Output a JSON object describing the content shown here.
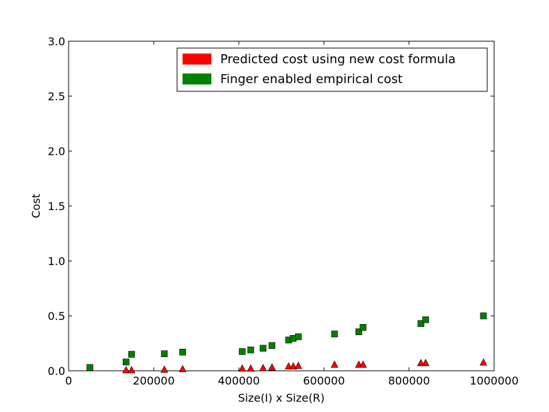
{
  "chart_data": {
    "type": "scatter",
    "xlabel": "Size(I) x Size(R)",
    "ylabel": "Cost",
    "xlim": [
      0,
      1000000
    ],
    "ylim": [
      0,
      3.0
    ],
    "xticks": [
      0,
      200000,
      400000,
      600000,
      800000,
      1000000
    ],
    "xtick_labels": [
      "0",
      "200000",
      "400000",
      "600000",
      "800000",
      "1000000"
    ],
    "yticks": [
      0.0,
      0.5,
      1.0,
      1.5,
      2.0,
      2.5,
      3.0
    ],
    "ytick_labels": [
      "0.0",
      "0.5",
      "1.0",
      "1.5",
      "2.0",
      "2.5",
      "3.0"
    ],
    "legend_position": "top-right",
    "grid": false,
    "series": [
      {
        "name": "Predicted cost using new cost formula",
        "color": "#ff0000",
        "marker": "triangle",
        "x": [
          135000,
          148000,
          225000,
          268000,
          408000,
          428000,
          457000,
          478000,
          517000,
          528000,
          540000,
          625000,
          682000,
          692000,
          828000,
          839000,
          975000
        ],
        "y": [
          0.005,
          0.005,
          0.01,
          0.015,
          0.02,
          0.02,
          0.025,
          0.03,
          0.04,
          0.04,
          0.045,
          0.055,
          0.055,
          0.055,
          0.07,
          0.07,
          0.075
        ]
      },
      {
        "name": "Finger enabled empirical cost",
        "color": "#008000",
        "marker": "square",
        "x": [
          50000,
          135000,
          148000,
          225000,
          268000,
          408000,
          428000,
          457000,
          478000,
          517000,
          528000,
          540000,
          625000,
          682000,
          692000,
          828000,
          839000,
          975000
        ],
        "y": [
          0.03,
          0.08,
          0.15,
          0.155,
          0.17,
          0.175,
          0.19,
          0.205,
          0.23,
          0.28,
          0.295,
          0.31,
          0.335,
          0.355,
          0.395,
          0.43,
          0.465,
          0.5
        ]
      }
    ]
  }
}
